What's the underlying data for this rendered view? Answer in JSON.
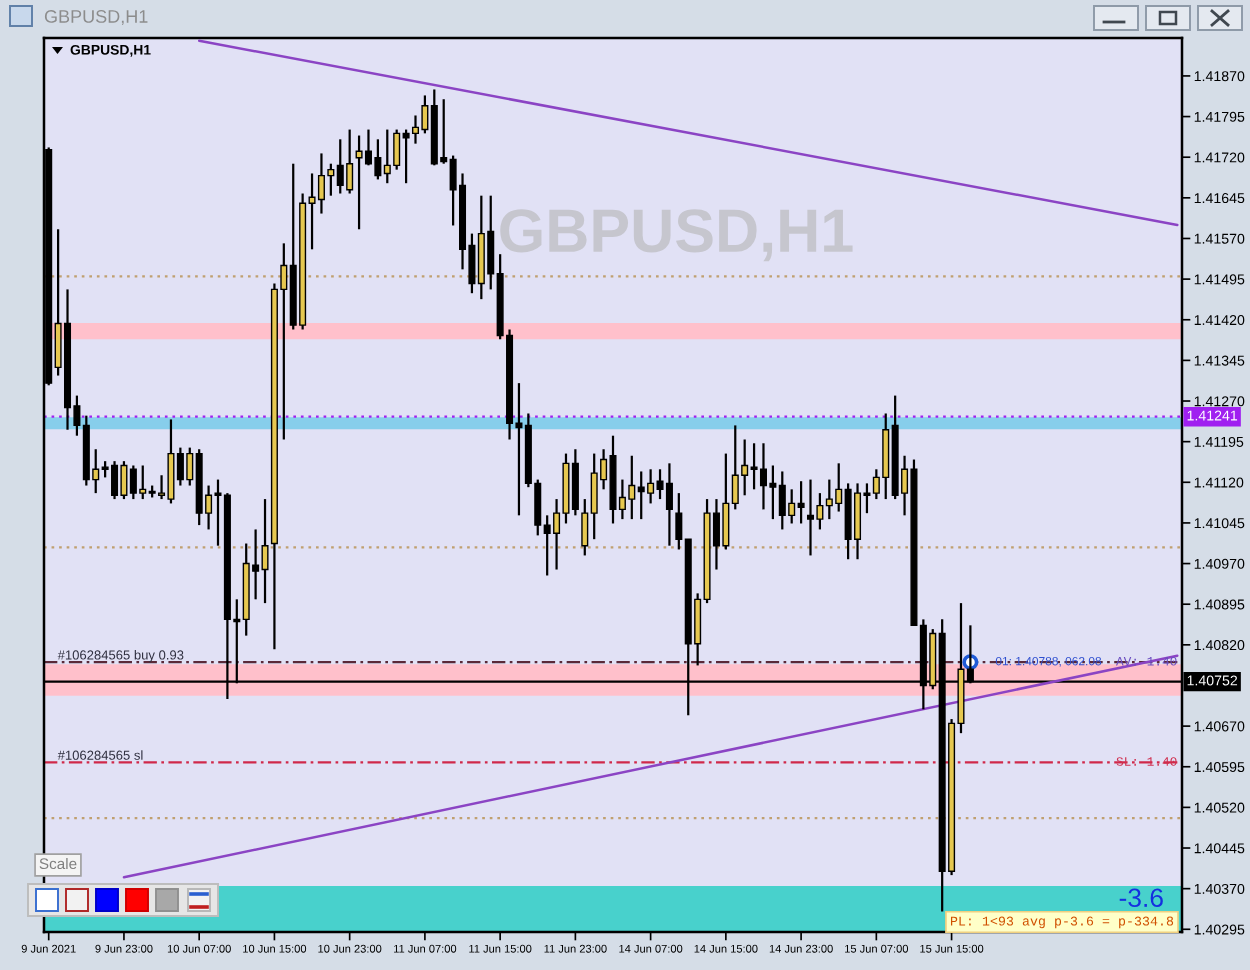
{
  "chart_data": {
    "type": "candlestick",
    "title": "GBPUSD,H1",
    "categories": [
      "9 Jun 2021",
      null,
      null,
      null,
      null,
      null,
      null,
      null,
      "9 Jun 23:00",
      null,
      null,
      null,
      null,
      null,
      null,
      null,
      "10 Jun 07:00",
      null,
      null,
      null,
      null,
      null,
      null,
      null,
      "10 Jun 15:00",
      null,
      null,
      null,
      null,
      null,
      null,
      null,
      "10 Jun 23:00",
      null,
      null,
      null,
      null,
      null,
      null,
      null,
      "11 Jun 07:00",
      null,
      null,
      null,
      null,
      null,
      null,
      null,
      "11 Jun 15:00",
      null,
      null,
      null,
      null,
      null,
      null,
      null,
      "11 Jun 23:00",
      null,
      null,
      null,
      null,
      null,
      null,
      null,
      "14 Jun 07:00",
      null,
      null,
      null,
      null,
      null,
      null,
      null,
      "14 Jun 15:00",
      null,
      null,
      null,
      null,
      null,
      null,
      null,
      "14 Jun 23:00",
      null,
      null,
      null,
      null,
      null,
      null,
      null,
      "15 Jun 07:00",
      null,
      null,
      null,
      null,
      null,
      null,
      null,
      "15 Jun 15:00",
      null,
      null,
      null,
      null,
      null,
      null,
      null,
      null,
      null,
      null,
      null,
      null,
      null,
      null,
      null,
      null,
      null,
      null,
      null,
      null,
      null,
      null,
      null,
      null
    ],
    "ohlc": [
      [
        1.41734,
        1.41738,
        1.41299,
        1.41303
      ],
      [
        1.41332,
        1.41587,
        1.41317,
        1.41413
      ],
      [
        1.41413,
        1.41476,
        1.41217,
        1.41258
      ],
      [
        1.41261,
        1.4128,
        1.41206,
        1.41225
      ],
      [
        1.41225,
        1.41243,
        1.41114,
        1.41125
      ],
      [
        1.41125,
        1.41181,
        1.411,
        1.41144
      ],
      [
        1.41148,
        1.41159,
        1.41129,
        1.41144
      ],
      [
        1.41151,
        1.41159,
        1.41089,
        1.41096
      ],
      [
        1.41096,
        1.41159,
        1.41089,
        1.41151
      ],
      [
        1.41144,
        1.41151,
        1.41089,
        1.411
      ],
      [
        1.411,
        1.41151,
        1.41089,
        1.41107
      ],
      [
        1.41103,
        1.41114,
        1.41092,
        1.411
      ],
      [
        1.41096,
        1.41133,
        1.41089,
        1.411
      ],
      [
        1.41089,
        1.41236,
        1.41081,
        1.41173
      ],
      [
        1.41173,
        1.41184,
        1.41114,
        1.41125
      ],
      [
        1.41125,
        1.41184,
        1.41114,
        1.41173
      ],
      [
        1.41173,
        1.41181,
        1.41041,
        1.41063
      ],
      [
        1.41063,
        1.41114,
        1.41033,
        1.41096
      ],
      [
        1.411,
        1.41125,
        1.41003,
        1.41096
      ],
      [
        1.41096,
        1.411,
        1.4072,
        1.40867
      ],
      [
        1.40867,
        1.40904,
        1.40749,
        1.40863
      ],
      [
        1.40867,
        1.41007,
        1.40837,
        1.4097
      ],
      [
        1.40967,
        1.41033,
        1.40904,
        1.40956
      ],
      [
        1.40959,
        1.41089,
        1.40897,
        1.41003
      ],
      [
        1.41007,
        1.41487,
        1.40812,
        1.41476
      ],
      [
        1.41476,
        1.41561,
        1.41199,
        1.4152
      ],
      [
        1.4152,
        1.41708,
        1.41402,
        1.4141
      ],
      [
        1.4141,
        1.41653,
        1.41402,
        1.41635
      ],
      [
        1.41635,
        1.4169,
        1.4155,
        1.41646
      ],
      [
        1.41642,
        1.41727,
        1.41616,
        1.41686
      ],
      [
        1.41686,
        1.41708,
        1.41649,
        1.41697
      ],
      [
        1.41705,
        1.41753,
        1.41653,
        1.41668
      ],
      [
        1.4166,
        1.41771,
        1.41653,
        1.41708
      ],
      [
        1.41719,
        1.4176,
        1.41587,
        1.41731
      ],
      [
        1.41731,
        1.41771,
        1.41705,
        1.41708
      ],
      [
        1.41719,
        1.41753,
        1.41679,
        1.41686
      ],
      [
        1.4169,
        1.41771,
        1.41672,
        1.41705
      ],
      [
        1.41705,
        1.41771,
        1.41697,
        1.41764
      ],
      [
        1.41764,
        1.41771,
        1.41672,
        1.41756
      ],
      [
        1.41764,
        1.41797,
        1.41745,
        1.41775
      ],
      [
        1.41771,
        1.41834,
        1.41764,
        1.41815
      ],
      [
        1.41815,
        1.41845,
        1.41705,
        1.41708
      ],
      [
        1.41719,
        1.41827,
        1.41708,
        1.41712
      ],
      [
        1.41716,
        1.41723,
        1.41594,
        1.4166
      ],
      [
        1.41668,
        1.4169,
        1.41513,
        1.4155
      ],
      [
        1.41557,
        1.41579,
        1.41469,
        1.41487
      ],
      [
        1.41487,
        1.41649,
        1.41458,
        1.41579
      ],
      [
        1.41583,
        1.41649,
        1.41476,
        1.41505
      ],
      [
        1.41505,
        1.41541,
        1.41384,
        1.41391
      ],
      [
        1.41391,
        1.41402,
        1.41199,
        1.41229
      ],
      [
        1.41229,
        1.41303,
        1.41059,
        1.41221
      ],
      [
        1.41225,
        1.41247,
        1.41111,
        1.41118
      ],
      [
        1.41118,
        1.41125,
        1.41022,
        1.41041
      ],
      [
        1.41041,
        1.41059,
        1.40948,
        1.41026
      ],
      [
        1.41026,
        1.41089,
        1.40959,
        1.41063
      ],
      [
        1.41063,
        1.41173,
        1.41044,
        1.41155
      ],
      [
        1.41155,
        1.41181,
        1.41059,
        1.4107
      ],
      [
        1.41003,
        1.41089,
        1.40985,
        1.41063
      ],
      [
        1.41063,
        1.41173,
        1.41015,
        1.41137
      ],
      [
        1.41125,
        1.41181,
        1.41107,
        1.41162
      ],
      [
        1.41169,
        1.41206,
        1.41044,
        1.4107
      ],
      [
        1.4107,
        1.41125,
        1.41052,
        1.41092
      ],
      [
        1.41089,
        1.41169,
        1.41052,
        1.41114
      ],
      [
        1.41111,
        1.4114,
        1.41052,
        1.41103
      ],
      [
        1.411,
        1.41144,
        1.41081,
        1.41118
      ],
      [
        1.41122,
        1.41144,
        1.41089,
        1.41107
      ],
      [
        1.41118,
        1.41155,
        1.41003,
        1.4107
      ],
      [
        1.41063,
        1.411,
        1.40996,
        1.41015
      ],
      [
        1.41015,
        1.41015,
        1.4069,
        1.40822
      ],
      [
        1.40822,
        1.40915,
        1.40782,
        1.40904
      ],
      [
        1.40904,
        1.41089,
        1.40897,
        1.41063
      ],
      [
        1.41063,
        1.41089,
        1.40959,
        1.41003
      ],
      [
        1.41003,
        1.41173,
        1.40996,
        1.41081
      ],
      [
        1.41081,
        1.41225,
        1.4107,
        1.41133
      ],
      [
        1.41133,
        1.41199,
        1.41096,
        1.41151
      ],
      [
        1.41148,
        1.41192,
        1.41107,
        1.41144
      ],
      [
        1.41144,
        1.41192,
        1.4107,
        1.41114
      ],
      [
        1.41118,
        1.41151,
        1.41052,
        1.41111
      ],
      [
        1.41114,
        1.4114,
        1.41033,
        1.41059
      ],
      [
        1.41059,
        1.41107,
        1.41044,
        1.41081
      ],
      [
        1.41081,
        1.41122,
        1.41044,
        1.41074
      ],
      [
        1.41059,
        1.41125,
        1.40985,
        1.41052
      ],
      [
        1.41052,
        1.411,
        1.41033,
        1.41077
      ],
      [
        1.41077,
        1.41125,
        1.41052,
        1.41089
      ],
      [
        1.41081,
        1.41155,
        1.41066,
        1.41107
      ],
      [
        1.41107,
        1.41118,
        1.40978,
        1.41015
      ],
      [
        1.41015,
        1.41118,
        1.40978,
        1.411
      ],
      [
        1.411,
        1.41118,
        1.41063,
        1.41096
      ],
      [
        1.411,
        1.41144,
        1.41089,
        1.41129
      ],
      [
        1.41129,
        1.41247,
        1.41089,
        1.41217
      ],
      [
        1.41225,
        1.4128,
        1.41089,
        1.41096
      ],
      [
        1.411,
        1.41169,
        1.41059,
        1.41144
      ],
      [
        1.41144,
        1.41162,
        1.40856,
        1.40856
      ],
      [
        1.40856,
        1.40867,
        1.40701,
        1.40745
      ],
      [
        1.40745,
        1.40849,
        1.40738,
        1.40841
      ],
      [
        1.40841,
        1.40867,
        1.40328,
        1.40402
      ],
      [
        1.40402,
        1.40683,
        1.40395,
        1.40675
      ],
      [
        1.40675,
        1.40897,
        1.40657,
        1.40775
      ],
      [
        1.40775,
        1.40856,
        1.40749,
        1.40752
      ],
      null,
      null,
      null,
      null,
      null,
      null,
      null,
      null,
      null,
      null,
      null,
      null,
      null,
      null,
      null,
      null,
      null,
      null,
      null,
      null,
      null,
      null
    ],
    "colors": [
      "#000000",
      "#e6c850",
      "#000000",
      "#000000",
      "#000000",
      "#e6c850",
      "#000000",
      "#000000",
      "#e6c850",
      "#000000",
      "#e6c850",
      "#000000",
      "#e6c850",
      "#e6c850",
      "#000000",
      "#e6c850",
      "#000000",
      "#e6c850",
      "#000000",
      "#000000",
      "#000000",
      "#e6c850",
      "#000000",
      "#e6c850",
      "#e6c850",
      "#e6c850",
      "#000000",
      "#e6c850",
      "#e6c850",
      "#e6c850",
      "#e6c850",
      "#000000",
      "#e6c850",
      "#e6c850",
      "#000000",
      "#000000",
      "#e6c850",
      "#e6c850",
      "#000000",
      "#e6c850",
      "#e6c850",
      "#000000",
      "#000000",
      "#000000",
      "#000000",
      "#000000",
      "#e6c850",
      "#000000",
      "#000000",
      "#000000",
      "#000000",
      "#000000",
      "#000000",
      "#000000",
      "#e6c850",
      "#e6c850",
      "#000000",
      "#e6c850",
      "#e6c850",
      "#e6c850",
      "#000000",
      "#e6c850",
      "#e6c850",
      "#000000",
      "#e6c850",
      "#000000",
      "#000000",
      "#000000",
      "#000000",
      "#e6c850",
      "#e6c850",
      "#000000",
      "#e6c850",
      "#e6c850",
      "#e6c850",
      "#000000",
      "#000000",
      "#000000",
      "#000000",
      "#e6c850",
      "#000000",
      "#000000",
      "#e6c850",
      "#e6c850",
      "#e6c850",
      "#000000",
      "#e6c850",
      "#000000",
      "#e6c850",
      "#e6c850",
      "#000000",
      "#e6c850",
      "#000000",
      "#000000",
      "#e6c850",
      "#000000",
      "#e6c850",
      "#e6c850",
      "#000000",
      null,
      null,
      null,
      null,
      null,
      null,
      null,
      null,
      null,
      null,
      null,
      null,
      null,
      null,
      null,
      null,
      null,
      null,
      null,
      null,
      null,
      null
    ],
    "series": [
      {
        "type": "line",
        "color": "#8b44c4",
        "values": [
          null,
          null,
          null,
          null,
          null,
          null,
          null,
          null,
          null,
          null,
          null,
          null,
          null,
          null,
          null,
          null,
          1.41935,
          null,
          null,
          null,
          null,
          null,
          null,
          null,
          null,
          null,
          null,
          null,
          null,
          null,
          null,
          null,
          null,
          null,
          null,
          null,
          null,
          null,
          null,
          null,
          null,
          null,
          null,
          null,
          null,
          null,
          null,
          null,
          null,
          null,
          null,
          null,
          null,
          null,
          null,
          null,
          null,
          null,
          null,
          null,
          null,
          null,
          null,
          null,
          null,
          null,
          null,
          null,
          null,
          null,
          null,
          null,
          null,
          null,
          null,
          null,
          null,
          null,
          null,
          null,
          null,
          null,
          null,
          null,
          null,
          null,
          null,
          null,
          null,
          null,
          null,
          null,
          null,
          null,
          null,
          null,
          null,
          null,
          null,
          null,
          null,
          null,
          null,
          null,
          null,
          null,
          null,
          null,
          null,
          null,
          null,
          null,
          null,
          null,
          null,
          null,
          null,
          null,
          null,
          null,
          1.41595
        ]
      },
      {
        "type": "line",
        "color": "#8b44c4",
        "values": [
          null,
          null,
          null,
          null,
          null,
          null,
          null,
          null,
          1.40391,
          null,
          null,
          null,
          null,
          null,
          null,
          null,
          null,
          null,
          null,
          null,
          null,
          null,
          null,
          null,
          null,
          null,
          null,
          null,
          null,
          null,
          null,
          null,
          null,
          null,
          null,
          null,
          null,
          null,
          null,
          null,
          null,
          null,
          null,
          null,
          null,
          null,
          null,
          null,
          null,
          null,
          null,
          null,
          null,
          null,
          null,
          null,
          null,
          null,
          null,
          null,
          null,
          null,
          null,
          null,
          null,
          null,
          null,
          null,
          null,
          null,
          null,
          null,
          null,
          null,
          null,
          null,
          null,
          null,
          null,
          null,
          null,
          null,
          null,
          null,
          null,
          null,
          null,
          null,
          null,
          null,
          null,
          null,
          null,
          null,
          null,
          null,
          null,
          null,
          null,
          null,
          null,
          null,
          null,
          null,
          null,
          null,
          null,
          null,
          null,
          null,
          null,
          null,
          null,
          null,
          null,
          null,
          null,
          null,
          null,
          null,
          1.408
        ]
      },
      {
        "type": "scatter",
        "color": "#1f5ad6",
        "marker": "circle",
        "values": [
          null,
          null,
          null,
          null,
          null,
          null,
          null,
          null,
          null,
          null,
          null,
          null,
          null,
          null,
          null,
          null,
          null,
          null,
          null,
          null,
          null,
          null,
          null,
          null,
          null,
          null,
          null,
          null,
          null,
          null,
          null,
          null,
          null,
          null,
          null,
          null,
          null,
          null,
          null,
          null,
          null,
          null,
          null,
          null,
          null,
          null,
          null,
          null,
          null,
          null,
          null,
          null,
          null,
          null,
          null,
          null,
          null,
          null,
          null,
          null,
          null,
          null,
          null,
          null,
          null,
          null,
          null,
          null,
          null,
          null,
          null,
          null,
          null,
          null,
          null,
          null,
          null,
          null,
          null,
          null,
          null,
          null,
          null,
          null,
          null,
          null,
          null,
          null,
          null,
          null,
          null,
          null,
          null,
          null,
          null,
          null,
          null,
          null,
          1.40788,
          null,
          null,
          null,
          null,
          null,
          null,
          null,
          null,
          null,
          null,
          null,
          null,
          null,
          null,
          null,
          null,
          null,
          null,
          null,
          null,
          null,
          null
        ]
      }
    ],
    "ylim": [
      1.4029,
      1.4194
    ],
    "yticks": [
      {
        "value": 1.4187,
        "label": "1.41870"
      },
      1.41795,
      {
        "value": 1.4172,
        "label": "1.41720"
      },
      1.41645,
      {
        "value": 1.4157,
        "label": "1.41570"
      },
      1.41495,
      {
        "value": 1.4142,
        "label": "1.41420"
      },
      1.41345,
      {
        "value": 1.4127,
        "label": "1.41270"
      },
      1.41195,
      {
        "value": 1.4112,
        "label": "1.41120"
      },
      1.41045,
      {
        "value": 1.4097,
        "label": "1.40970"
      },
      1.40895,
      {
        "value": 1.4082,
        "label": "1.40820"
      },
      {
        "value": 1.4067,
        "label": "1.40670"
      },
      1.40595,
      {
        "value": 1.4052,
        "label": "1.40520"
      },
      1.40445,
      {
        "value": 1.4037,
        "label": "1.40370"
      },
      1.40295
    ],
    "ref_lines": [
      {
        "axis": "y",
        "value": 1.41241,
        "label": "1.41241",
        "color": "#a020f0",
        "line_style": "dotted"
      },
      {
        "axis": "y",
        "value": 1.40752,
        "label": "1.40752",
        "color": "#000000",
        "line_style": "solid"
      },
      {
        "axis": "y",
        "value": 1.415,
        "color": "#c0a070",
        "line_style": "dotted"
      },
      {
        "axis": "y",
        "value": 1.41,
        "color": "#c0a070",
        "line_style": "dotted"
      },
      {
        "axis": "y",
        "value": 1.405,
        "color": "#c0a070",
        "line_style": "dotted"
      },
      {
        "axis": "y",
        "value": 1.40788,
        "label": "#106284565 buy 0.93",
        "color": "#5a2838",
        "line_style": "dashdot"
      },
      {
        "axis": "y",
        "value": 1.40603,
        "label": "#106284565 sl",
        "color": "#d0284a",
        "line_style": "dashdot"
      }
    ],
    "bands": [
      {
        "axis": "y",
        "from": 1.41384,
        "to": 1.41414,
        "color": "#ffc0cb"
      },
      {
        "axis": "y",
        "from": 1.41218,
        "to": 1.4124,
        "color": "#87ceeb"
      },
      {
        "axis": "y",
        "from": 1.40726,
        "to": 1.40784,
        "color": "#ffc0cb"
      },
      {
        "axis": "y",
        "from": 1.4029,
        "to": 1.40375,
        "color": "#48d1cc"
      }
    ],
    "annotations": [
      "GBPUSD,H1",
      "GBPUSD,H1",
      {
        "text": "01: 1.40788, 062.08",
        "y": 1.40788
      },
      {
        "text": "AV: 1.40",
        "y": 1.40788
      },
      {
        "text": "SL: 1.40",
        "y": 1.40603
      },
      "-3.6",
      "PL: 1<93 avg p-3.6 = p-334.8",
      "Scale"
    ]
  }
}
